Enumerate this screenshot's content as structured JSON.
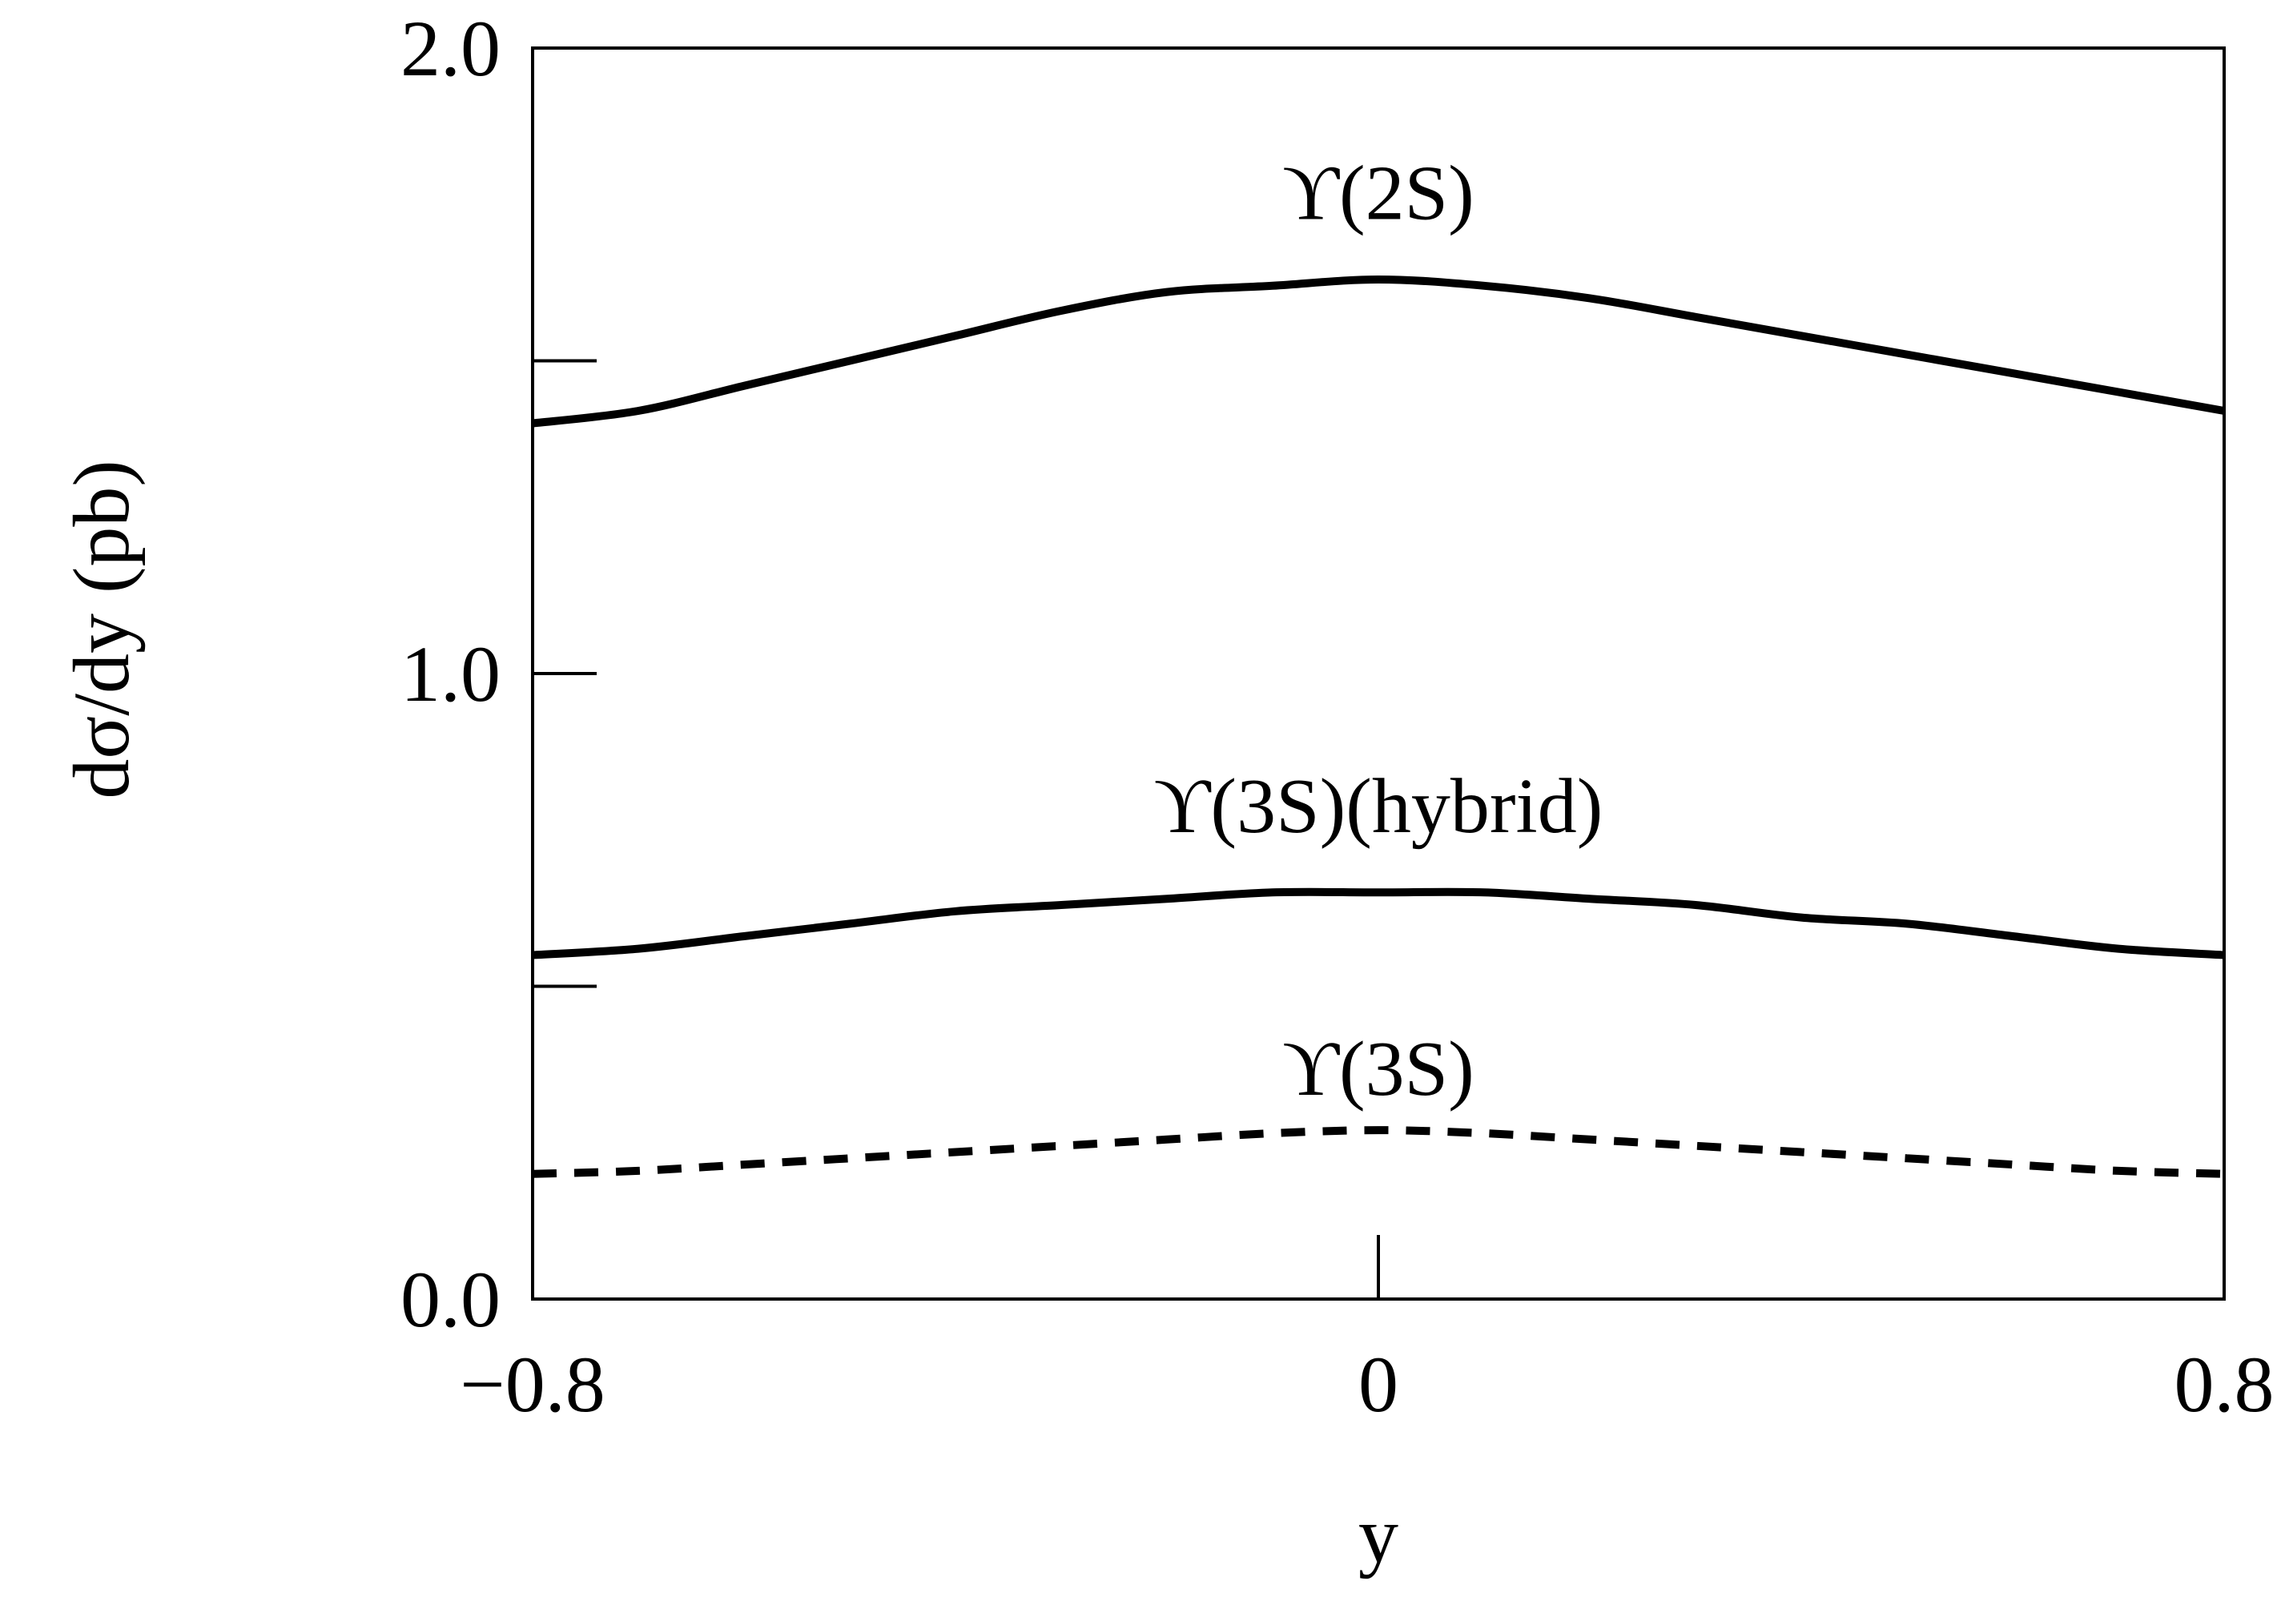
{
  "chart_data": {
    "type": "line",
    "title": "",
    "xlabel": "y",
    "ylabel": "dσ/dy (pb)",
    "xlim": [
      -0.8,
      0.8
    ],
    "ylim": [
      0.0,
      2.0
    ],
    "x_ticks": [
      {
        "value": -0.8,
        "label": "−0.8"
      },
      {
        "value": 0,
        "label": "0"
      },
      {
        "value": 0.8,
        "label": "0.8"
      }
    ],
    "y_ticks": [
      {
        "value": 0.0,
        "label": "0.0"
      },
      {
        "value": 1.0,
        "label": "1.0"
      },
      {
        "value": 2.0,
        "label": "2.0"
      }
    ],
    "y_minor_ticks": [
      0.5,
      1.5
    ],
    "grid": false,
    "legend": "none",
    "series": [
      {
        "name": "ϒ(2S)",
        "style": "solid",
        "label_at": [
          0.0,
          1.77
        ],
        "x": [
          -0.8,
          -0.7,
          -0.6,
          -0.5,
          -0.4,
          -0.3,
          -0.2,
          -0.1,
          0.0,
          0.1,
          0.2,
          0.3,
          0.4,
          0.5,
          0.6,
          0.7,
          0.8
        ],
        "y": [
          1.4,
          1.42,
          1.46,
          1.5,
          1.54,
          1.58,
          1.61,
          1.62,
          1.63,
          1.62,
          1.6,
          1.57,
          1.54,
          1.51,
          1.48,
          1.45,
          1.42
        ]
      },
      {
        "name": "ϒ(3S)(hybrid)",
        "style": "solid",
        "label_at": [
          0.0,
          0.79
        ],
        "x": [
          -0.8,
          -0.7,
          -0.6,
          -0.5,
          -0.4,
          -0.3,
          -0.2,
          -0.1,
          0.0,
          0.1,
          0.2,
          0.3,
          0.4,
          0.5,
          0.6,
          0.7,
          0.8
        ],
        "y": [
          0.55,
          0.56,
          0.58,
          0.6,
          0.62,
          0.63,
          0.64,
          0.65,
          0.65,
          0.65,
          0.64,
          0.63,
          0.61,
          0.6,
          0.58,
          0.56,
          0.55
        ]
      },
      {
        "name": "ϒ(3S)",
        "style": "dashed",
        "label_at": [
          0.0,
          0.37
        ],
        "x": [
          -0.8,
          -0.7,
          -0.6,
          -0.5,
          -0.4,
          -0.3,
          -0.2,
          -0.1,
          0.0,
          0.1,
          0.2,
          0.3,
          0.4,
          0.5,
          0.6,
          0.7,
          0.8
        ],
        "y": [
          0.2,
          0.205,
          0.215,
          0.225,
          0.235,
          0.245,
          0.255,
          0.265,
          0.27,
          0.265,
          0.255,
          0.245,
          0.235,
          0.225,
          0.215,
          0.205,
          0.2
        ]
      }
    ]
  }
}
